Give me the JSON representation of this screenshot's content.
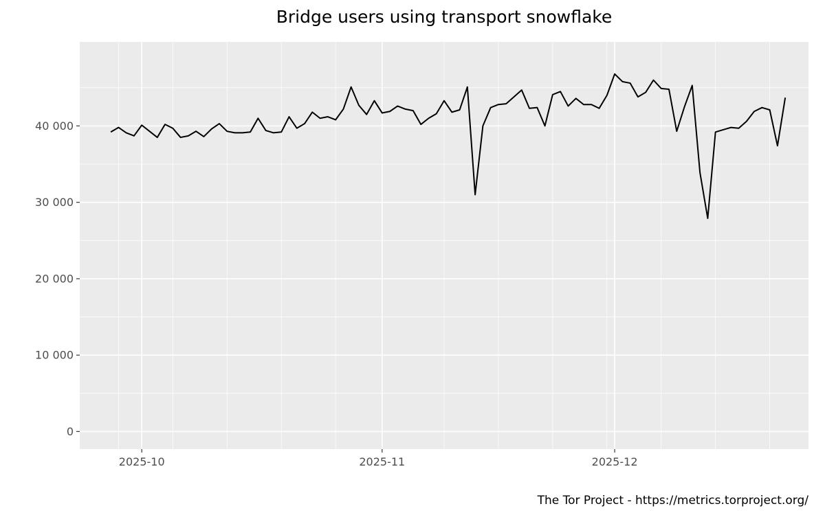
{
  "chart_data": {
    "type": "line",
    "title": "Bridge users using transport snowflake",
    "xlabel": "",
    "ylabel": "",
    "caption": "The Tor Project - https://metrics.torproject.org/",
    "x_start": "2025-09-27",
    "x_end": "2025-12-22",
    "xlim": [
      "2025-09-23",
      "2025-12-26"
    ],
    "ylim": [
      -2300,
      51000
    ],
    "y_ticks": [
      {
        "value": 0,
        "label": "0"
      },
      {
        "value": 10000,
        "label": "10 000"
      },
      {
        "value": 20000,
        "label": "20 000"
      },
      {
        "value": 30000,
        "label": "30 000"
      },
      {
        "value": 40000,
        "label": "40 000"
      }
    ],
    "x_ticks": [
      {
        "date": "2025-10-01",
        "label": "2025-10"
      },
      {
        "date": "2025-11-01",
        "label": "2025-11"
      },
      {
        "date": "2025-12-01",
        "label": "2025-12"
      }
    ],
    "x_minor_ticks": [
      "2025-09-28",
      "2025-10-05",
      "2025-10-12",
      "2025-10-19",
      "2025-10-26",
      "2025-11-09",
      "2025-11-16",
      "2025-11-23",
      "2025-11-30",
      "2025-12-07",
      "2025-12-14",
      "2025-12-21"
    ],
    "grid": true,
    "series": [
      {
        "values": [
          39200,
          39800,
          39100,
          38700,
          40100,
          39300,
          38500,
          40200,
          39700,
          38500,
          38700,
          39300,
          38600,
          39600,
          40300,
          39300,
          39100,
          39100,
          39200,
          41000,
          39400,
          39100,
          39200,
          41200,
          39700,
          40300,
          41800,
          41000,
          41200,
          40800,
          42200,
          45100,
          42700,
          41500,
          43300,
          41700,
          41900,
          42600,
          42200,
          42000,
          40200,
          41000,
          41600,
          43300,
          41800,
          42100,
          45100,
          31000,
          40000,
          42400,
          42800,
          42900,
          43800,
          44700,
          42300,
          42400,
          40000,
          44100,
          44500,
          42600,
          43600,
          42800,
          42800,
          42300,
          44000,
          46800,
          45800,
          45600,
          43800,
          44400,
          46000,
          44900,
          44800,
          39300,
          42500,
          45300,
          33900,
          27900,
          39200,
          39500,
          39800,
          39700,
          40600,
          41900,
          42400,
          42100,
          37400,
          43700
        ]
      }
    ]
  }
}
